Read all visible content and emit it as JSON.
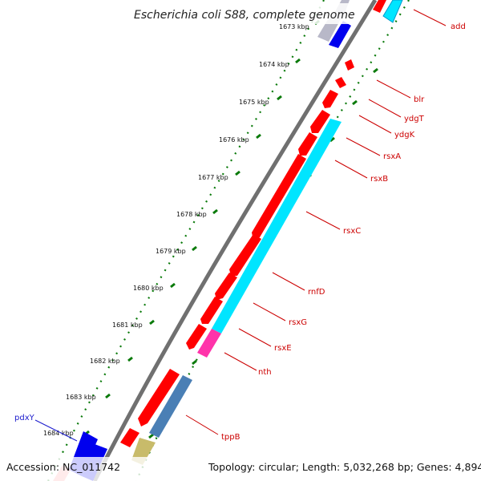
{
  "title": "Escherichia coli S88, complete genome",
  "kbp_labels": [
    {
      "text": "1673 kbp",
      "value": 1673
    },
    {
      "text": "1674 kbp",
      "value": 1674
    },
    {
      "text": "1675 kbp",
      "value": 1675
    },
    {
      "text": "1676 kbp",
      "value": 1676
    },
    {
      "text": "1677 kbp",
      "value": 1677
    },
    {
      "text": "1678 kbp",
      "value": 1678
    },
    {
      "text": "1679 kbp",
      "value": 1679
    },
    {
      "text": "1680 kbp",
      "value": 1680
    },
    {
      "text": "1681 kbp",
      "value": 1681
    },
    {
      "text": "1682 kbp",
      "value": 1682
    },
    {
      "text": "1683 kbp",
      "value": 1683
    },
    {
      "text": "1684 kbp",
      "value": 1684
    }
  ],
  "gene_labels": [
    {
      "text": "add",
      "color": "#cc0000"
    },
    {
      "text": "blr",
      "color": "#cc0000"
    },
    {
      "text": "ydgT",
      "color": "#cc0000"
    },
    {
      "text": "ydgK",
      "color": "#cc0000"
    },
    {
      "text": "rsxA",
      "color": "#cc0000"
    },
    {
      "text": "rsxB",
      "color": "#cc0000"
    },
    {
      "text": "rsxC",
      "color": "#cc0000"
    },
    {
      "text": "rnfD",
      "color": "#cc0000"
    },
    {
      "text": "rsxG",
      "color": "#cc0000"
    },
    {
      "text": "rsxE",
      "color": "#cc0000"
    },
    {
      "text": "nth",
      "color": "#cc0000"
    },
    {
      "text": "tppB",
      "color": "#cc0000"
    },
    {
      "text": "pdxY",
      "color": "#1a1acc"
    }
  ],
  "footer": {
    "accession": "Accession: NC_011742",
    "topology": "Topology: circular; Length: 5,032,268 bp; Genes: 4,894"
  },
  "colors": {
    "forward_gene": "#ff0000",
    "reverse_gene": "#00e5ff",
    "blue_gene": "#0000ee",
    "magenta_gene": "#ff33aa",
    "steel_gene": "#4a7fb5",
    "khaki_gene": "#c8bb6a",
    "gray_gene": "#b8b8c8",
    "backbone": "#707070",
    "tick_green": "#0a7a0a"
  }
}
